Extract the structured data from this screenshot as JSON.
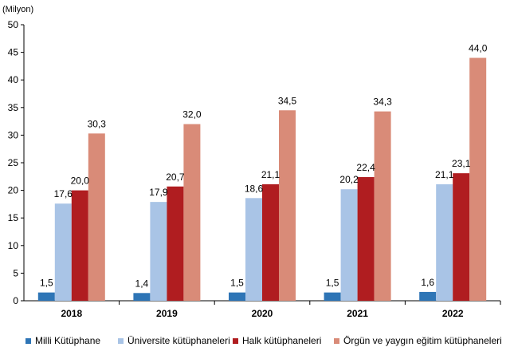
{
  "chart_data": {
    "type": "bar",
    "unit_label": "(Milyon)",
    "categories": [
      "2018",
      "2019",
      "2020",
      "2021",
      "2022"
    ],
    "ylim": [
      0,
      50
    ],
    "yticks": [
      0,
      5,
      10,
      15,
      20,
      25,
      30,
      35,
      40,
      45,
      50
    ],
    "grid": false,
    "legend_position": "bottom",
    "series": [
      {
        "name": "Milli Kütüphane",
        "color": "#2e75b6",
        "values": [
          1.5,
          1.4,
          1.5,
          1.5,
          1.6
        ],
        "labels": [
          "1,5",
          "1,4",
          "1,5",
          "1,5",
          "1,6"
        ]
      },
      {
        "name": "Üniversite kütüphaneleri",
        "color": "#a9c4e6",
        "values": [
          17.6,
          17.9,
          18.6,
          20.2,
          21.1
        ],
        "labels": [
          "17,6",
          "17,9",
          "18,6",
          "20,2",
          "21,1"
        ]
      },
      {
        "name": "Halk kütüphaneleri",
        "color": "#b01d20",
        "values": [
          20.0,
          20.7,
          21.1,
          22.4,
          23.1
        ],
        "labels": [
          "20,0",
          "20,7",
          "21,1",
          "22,4",
          "23,1"
        ]
      },
      {
        "name": "Örgün ve yaygın eğitim kütüphaneleri",
        "color": "#d98b78",
        "values": [
          30.3,
          32.0,
          34.5,
          34.3,
          44.0
        ],
        "labels": [
          "30,3",
          "32,0",
          "34,5",
          "34,3",
          "44,0"
        ]
      }
    ]
  }
}
